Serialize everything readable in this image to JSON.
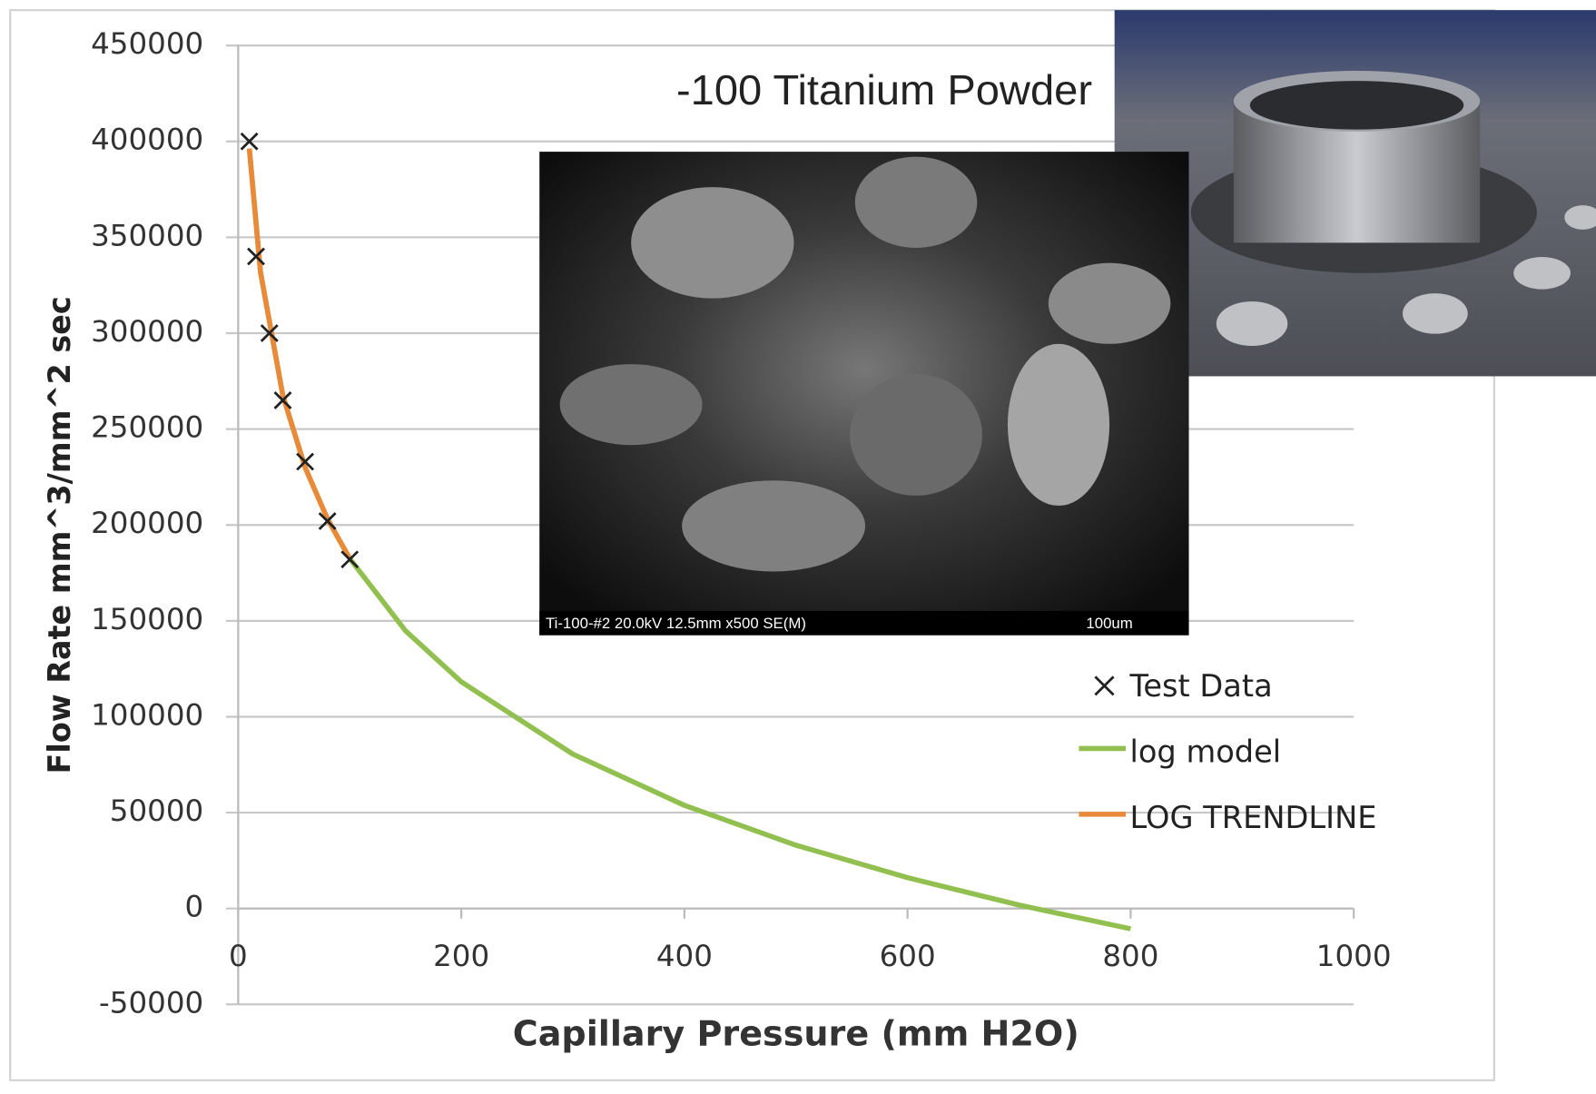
{
  "chart_data": {
    "type": "line",
    "title": "-100 Titanium Powder",
    "x_label": "Capillary Pressure (mm H2O)",
    "y_label": "Flow Rate mm^3/mm^2 sec",
    "xlim": [
      0,
      1000
    ],
    "xticks": [
      0,
      200,
      400,
      600,
      800,
      1000
    ],
    "ylim": [
      -50000,
      450000
    ],
    "yticks": [
      -50000,
      0,
      50000,
      100000,
      150000,
      200000,
      250000,
      300000,
      350000,
      400000,
      450000
    ],
    "grid": true,
    "legend": "right",
    "series": [
      {
        "name": "log model",
        "type": "line",
        "color": "#92c050",
        "x": [
          10,
          20,
          40,
          60,
          80,
          100,
          150,
          200,
          300,
          400,
          500,
          600,
          700,
          800
        ],
        "values": [
          396300,
          331900,
          267600,
          230000,
          203200,
          182500,
          144800,
          118200,
          80500,
          53800,
          33000,
          16100,
          1800,
          -10600
        ]
      },
      {
        "name": "LOG TRENDLINE",
        "type": "line",
        "color": "#e98a3a",
        "x": [
          10,
          20,
          40,
          60,
          80,
          100
        ],
        "values": [
          396300,
          331900,
          267600,
          230000,
          203200,
          182500
        ]
      },
      {
        "name": "Test Data",
        "type": "scatter",
        "color": "#222222",
        "x": [
          10,
          16,
          28,
          40,
          60,
          80,
          100
        ],
        "values": [
          400000,
          340000,
          300000,
          265000,
          233000,
          202000,
          182000
        ]
      }
    ]
  },
  "inset": {
    "caption": "Ti-100-#2 20.0kV 12.5mm x500 SE(M)",
    "scale": "100um"
  }
}
